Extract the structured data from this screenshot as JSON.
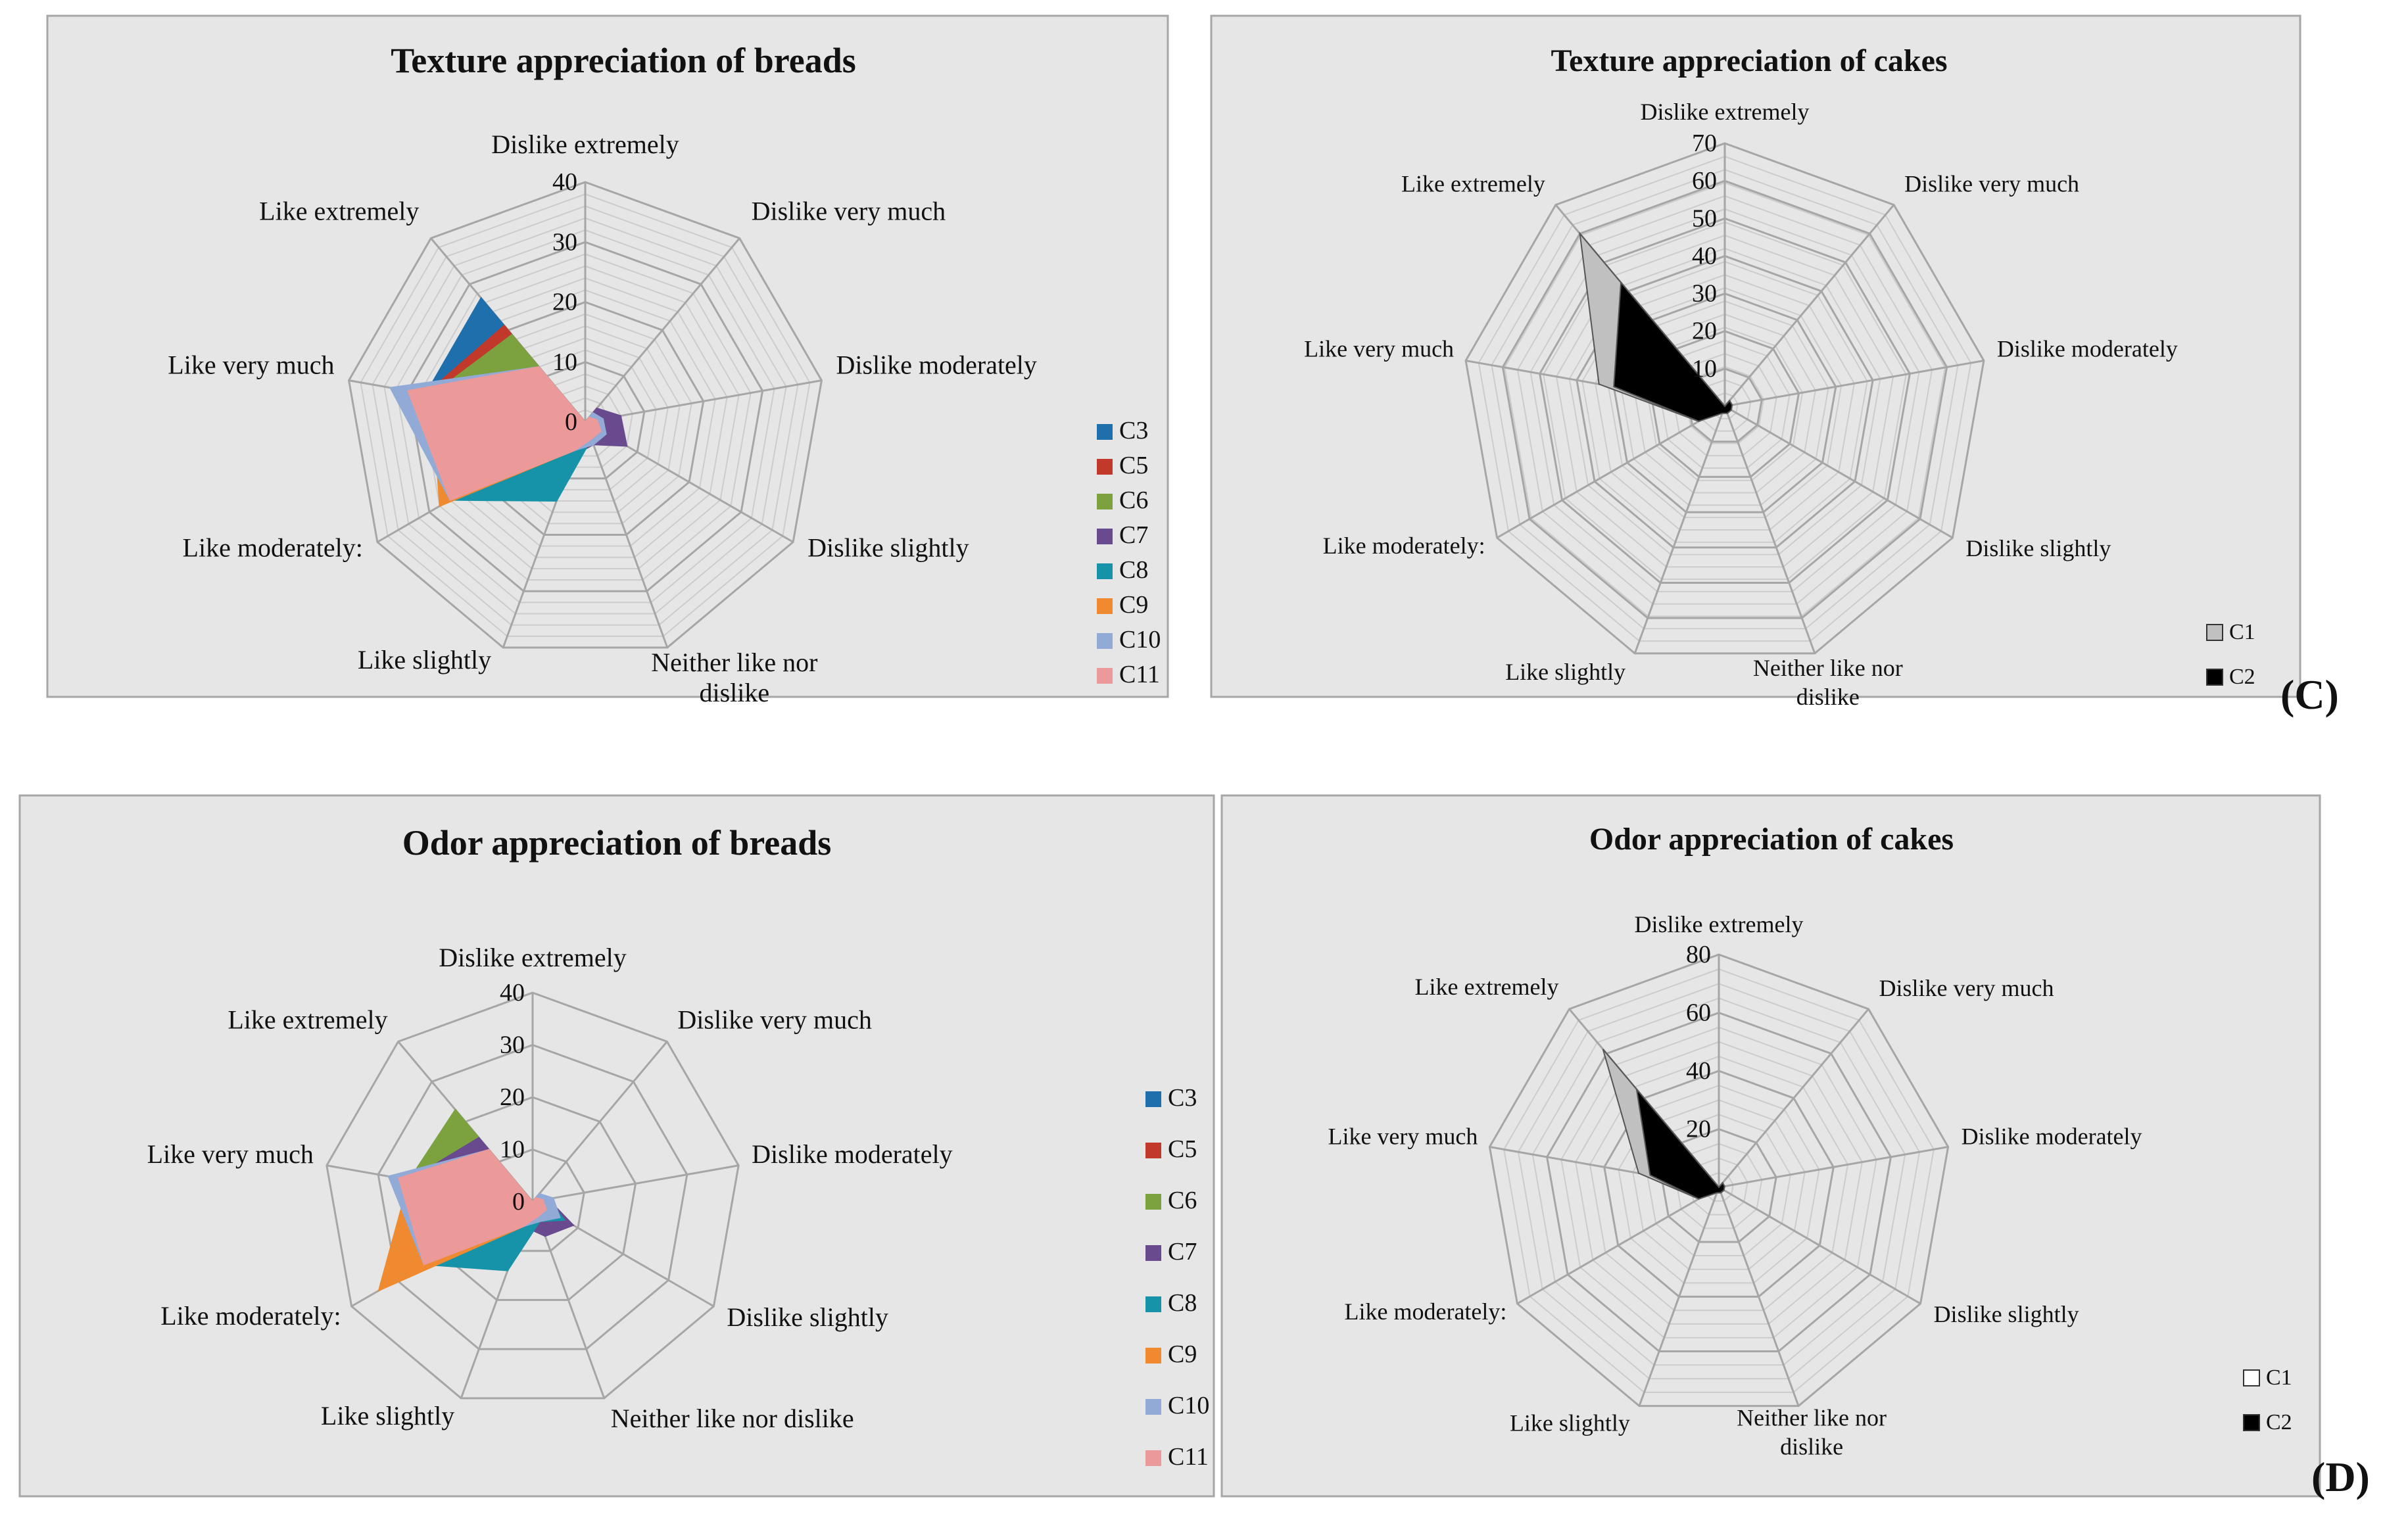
{
  "labels": {
    "panel_c": "(C)",
    "panel_d": "(D)"
  },
  "colors": {
    "panel_bg": "#e6e6e6",
    "panel_border": "#a6a6a6",
    "grid": "#a6a6a6",
    "text": "#111111",
    "C1": "#c0c0c0",
    "C2": "#000000",
    "C3": "#1f6fad",
    "C5": "#c0392b",
    "C6": "#7ba23f",
    "C7": "#6a4a8f",
    "C8": "#1693a8",
    "C9": "#f08a30",
    "C10": "#92aad6",
    "C11": "#eb9999"
  },
  "chart_data": [
    {
      "type": "radar",
      "title": "Texture appreciation of breads",
      "axes": [
        "Dislike extremely",
        "Dislike very much",
        "Dislike moderately",
        "Dislike slightly",
        "Neither like nor dislike",
        "Like slightly",
        "Like moderately:",
        "Like very much",
        "Like extremely"
      ],
      "rmax": 40,
      "tick_labels": [
        "0",
        "10",
        "20",
        "30",
        "40"
      ],
      "tick_values": [
        0,
        10,
        20,
        30,
        40
      ],
      "minor_step": 2,
      "legend_position": "right",
      "series": [
        {
          "name": "C3",
          "values": [
            0,
            2,
            3,
            3,
            3,
            5,
            18,
            27,
            27
          ]
        },
        {
          "name": "C5",
          "values": [
            0,
            1,
            2,
            3,
            3,
            5,
            18,
            27,
            21
          ]
        },
        {
          "name": "C6",
          "values": [
            0,
            1,
            2,
            3,
            3,
            5,
            18,
            26,
            19
          ]
        },
        {
          "name": "C7",
          "values": [
            0,
            3,
            6,
            8,
            4,
            6,
            18,
            26,
            12
          ]
        },
        {
          "name": "C8",
          "values": [
            0,
            1,
            2,
            3,
            3,
            14,
            26,
            26,
            12
          ]
        },
        {
          "name": "C9",
          "values": [
            0,
            1,
            2,
            3,
            3,
            5,
            28,
            26,
            12
          ]
        },
        {
          "name": "C10",
          "values": [
            0,
            2,
            3,
            4,
            4,
            5,
            26,
            33,
            12
          ]
        },
        {
          "name": "C11",
          "values": [
            0,
            1,
            2,
            3,
            3,
            5,
            26,
            30,
            12
          ]
        }
      ]
    },
    {
      "type": "radar",
      "title": "Texture appreciation of cakes",
      "axes": [
        "Dislike extremely",
        "Dislike very much",
        "Dislike moderately",
        "Dislike slightly",
        "Neither like nor dislike",
        "Like slightly",
        "Like moderately:",
        "Like very much",
        "Like extremely"
      ],
      "rmax": 70,
      "tick_labels": [
        "10",
        "20",
        "30",
        "40",
        "50",
        "60",
        "70"
      ],
      "tick_values": [
        10,
        20,
        30,
        40,
        50,
        60,
        70
      ],
      "minor_step": 3.5,
      "legend_position": "bottom-right",
      "series": [
        {
          "name": "C1",
          "values": [
            0,
            1,
            1,
            1,
            1,
            1,
            8,
            34,
            60
          ]
        },
        {
          "name": "C2",
          "values": [
            0,
            2,
            2,
            2,
            2,
            2,
            8,
            30,
            43
          ]
        }
      ]
    },
    {
      "type": "radar",
      "title": "Odor appreciation of breads",
      "axes": [
        "Dislike extremely",
        "Dislike very much",
        "Dislike moderately",
        "Dislike slightly",
        "Neither like nor dislike",
        "Like slightly",
        "Like moderately:",
        "Like very much",
        "Like extremely"
      ],
      "rmax": 40,
      "tick_labels": [
        "0",
        "10",
        "20",
        "30",
        "40"
      ],
      "tick_values": [
        0,
        10,
        20,
        30,
        40
      ],
      "minor_step": 10,
      "legend_position": "right",
      "series": [
        {
          "name": "C3",
          "values": [
            0,
            1,
            2,
            3,
            3,
            5,
            20,
            24,
            13
          ]
        },
        {
          "name": "C5",
          "values": [
            0,
            1,
            2,
            3,
            3,
            5,
            20,
            24,
            13
          ]
        },
        {
          "name": "C6",
          "values": [
            0,
            1,
            2,
            3,
            3,
            5,
            20,
            24,
            23
          ]
        },
        {
          "name": "C7",
          "values": [
            0,
            2,
            3,
            9,
            7,
            5,
            20,
            24,
            16
          ]
        },
        {
          "name": "C8",
          "values": [
            0,
            1,
            3,
            7,
            4,
            14,
            24,
            24,
            13
          ]
        },
        {
          "name": "C9",
          "values": [
            0,
            1,
            2,
            3,
            3,
            5,
            34,
            24,
            13
          ]
        },
        {
          "name": "C10",
          "values": [
            0,
            2,
            4,
            6,
            4,
            5,
            24,
            28,
            13
          ]
        },
        {
          "name": "C11",
          "values": [
            0,
            1,
            2,
            3,
            3,
            5,
            24,
            26,
            13
          ]
        }
      ]
    },
    {
      "type": "radar",
      "title": "Odor appreciation of cakes",
      "axes": [
        "Dislike extremely",
        "Dislike very much",
        "Dislike moderately",
        "Dislike slightly",
        "Neither like nor dislike",
        "Like slightly",
        "Like moderately:",
        "Like very much",
        "Like extremely"
      ],
      "rmax": 80,
      "tick_labels": [
        "20",
        "40",
        "60",
        "80"
      ],
      "tick_values": [
        20,
        40,
        60,
        80
      ],
      "minor_step": 5,
      "legend_position": "bottom-right",
      "series": [
        {
          "name": "C1",
          "values": [
            0,
            2,
            2,
            2,
            2,
            2,
            8,
            28,
            62
          ]
        },
        {
          "name": "C2",
          "values": [
            0,
            2,
            2,
            2,
            2,
            2,
            8,
            24,
            44
          ]
        }
      ]
    }
  ]
}
